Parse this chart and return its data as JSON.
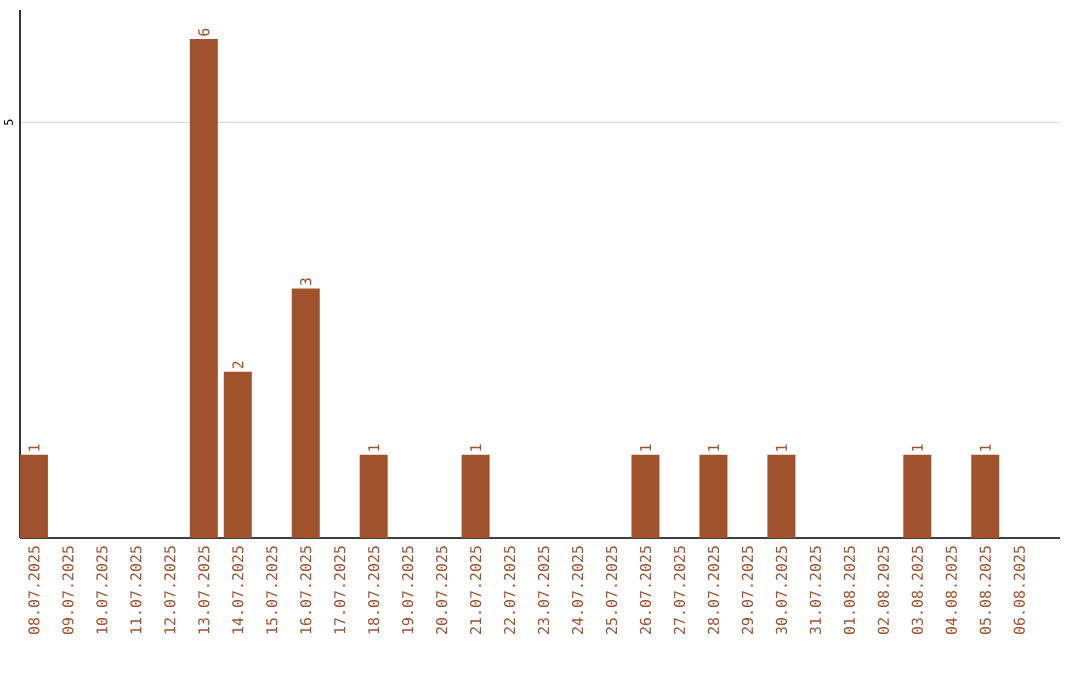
{
  "chart_data": {
    "type": "bar",
    "categories": [
      "08.07.2025",
      "09.07.2025",
      "10.07.2025",
      "11.07.2025",
      "12.07.2025",
      "13.07.2025",
      "14.07.2025",
      "15.07.2025",
      "16.07.2025",
      "17.07.2025",
      "18.07.2025",
      "19.07.2025",
      "20.07.2025",
      "21.07.2025",
      "22.07.2025",
      "23.07.2025",
      "24.07.2025",
      "25.07.2025",
      "26.07.2025",
      "27.07.2025",
      "28.07.2025",
      "29.07.2025",
      "30.07.2025",
      "31.07.2025",
      "01.08.2025",
      "02.08.2025",
      "03.08.2025",
      "04.08.2025",
      "05.08.2025",
      "06.08.2025"
    ],
    "values": [
      1,
      0,
      0,
      0,
      0,
      6,
      2,
      0,
      3,
      0,
      1,
      0,
      0,
      1,
      0,
      0,
      0,
      0,
      1,
      0,
      1,
      0,
      1,
      0,
      0,
      0,
      1,
      0,
      1,
      0
    ],
    "value_labels": [
      "1",
      null,
      null,
      null,
      null,
      "6",
      "2",
      null,
      "3",
      null,
      "1",
      null,
      null,
      "1",
      null,
      null,
      null,
      null,
      "1",
      null,
      "1",
      null,
      "1",
      null,
      null,
      null,
      "1",
      null,
      "1",
      null
    ],
    "color": "#a0522d",
    "ylim": [
      0,
      6.35
    ],
    "yticks": [
      5
    ],
    "grid": "y"
  }
}
